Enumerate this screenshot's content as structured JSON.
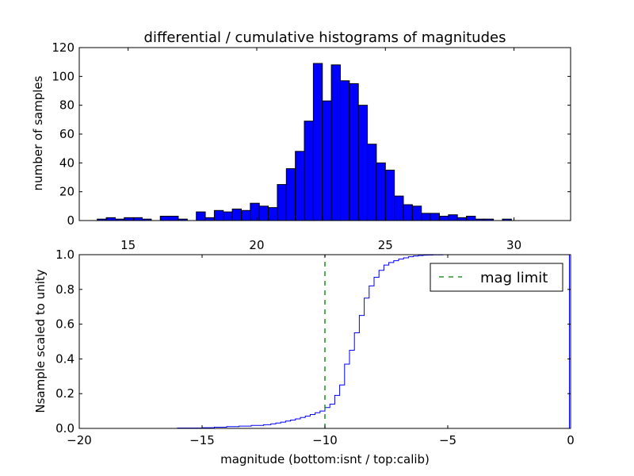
{
  "chart_data": [
    {
      "type": "bar",
      "title": "differential / cumulative histograms of magnitudes",
      "ylabel": "number of samples",
      "xlabel": "",
      "xlim": [
        13.1,
        32.2
      ],
      "ylim": [
        0,
        120
      ],
      "xticks": [
        15,
        20,
        25,
        30
      ],
      "yticks": [
        0,
        20,
        40,
        60,
        80,
        100,
        120
      ],
      "xtick_labels": [
        "15",
        "20",
        "25",
        "30"
      ],
      "ytick_labels": [
        "0",
        "20",
        "40",
        "60",
        "80",
        "100",
        "120"
      ],
      "bin_width": 0.35,
      "x_bin_starts": [
        13.8,
        14.15,
        14.5,
        14.85,
        15.2,
        15.55,
        16.25,
        16.6,
        16.95,
        17.65,
        18.0,
        18.35,
        18.7,
        19.05,
        19.4,
        19.75,
        20.1,
        20.45,
        20.8,
        21.15,
        21.5,
        21.85,
        22.2,
        22.55,
        22.9,
        23.25,
        23.6,
        23.95,
        24.3,
        24.65,
        25.0,
        25.35,
        25.7,
        26.05,
        26.4,
        26.75,
        27.1,
        27.45,
        27.8,
        28.15,
        28.5,
        28.85,
        29.55
      ],
      "values": [
        1,
        2,
        1,
        2,
        2,
        1,
        3,
        3,
        1,
        6,
        2,
        7,
        6,
        8,
        7,
        12,
        10,
        9,
        25,
        36,
        48,
        69,
        109,
        83,
        108,
        97,
        95,
        80,
        53,
        40,
        35,
        17,
        11,
        10,
        5,
        5,
        3,
        4,
        2,
        3,
        1,
        1,
        1
      ],
      "bar_color": "#0000ff",
      "grid": false
    },
    {
      "type": "line",
      "drawstyle": "steps",
      "xlabel": "magnitude (bottom:isnt / top:calib)",
      "ylabel": "Nsample scaled to unity",
      "xlim": [
        -20,
        0
      ],
      "ylim": [
        0,
        1
      ],
      "xticks": [
        -20,
        -15,
        -10,
        -5,
        0
      ],
      "yticks": [
        0,
        0.2,
        0.4,
        0.6,
        0.8,
        1.0
      ],
      "xtick_labels": [
        "−20",
        "−15",
        "−10",
        "−5",
        "0"
      ],
      "ytick_labels": [
        "0.0",
        "0.2",
        "0.4",
        "0.6",
        "0.8",
        "1.0"
      ],
      "series": [
        {
          "color": "#0000ff",
          "x": [
            -20.0,
            -16.0,
            -15.0,
            -14.5,
            -14.0,
            -13.5,
            -13.0,
            -12.5,
            -12.2,
            -12.0,
            -11.8,
            -11.6,
            -11.4,
            -11.2,
            -11.0,
            -10.8,
            -10.6,
            -10.4,
            -10.2,
            -10.0,
            -9.8,
            -9.6,
            -9.4,
            -9.2,
            -9.0,
            -8.8,
            -8.6,
            -8.4,
            -8.2,
            -8.0,
            -7.8,
            -7.6,
            -7.4,
            -7.2,
            -7.0,
            -6.8,
            -6.6,
            -6.4,
            -6.2,
            -6.0,
            -5.8,
            -5.6,
            -5.4,
            -5.2,
            -5.0,
            -0.05
          ],
          "y": [
            0.0,
            0.002,
            0.004,
            0.007,
            0.01,
            0.013,
            0.017,
            0.021,
            0.026,
            0.031,
            0.036,
            0.042,
            0.048,
            0.055,
            0.063,
            0.071,
            0.08,
            0.09,
            0.1,
            0.12,
            0.14,
            0.19,
            0.25,
            0.37,
            0.45,
            0.55,
            0.65,
            0.75,
            0.82,
            0.87,
            0.91,
            0.94,
            0.955,
            0.965,
            0.975,
            0.982,
            0.988,
            0.992,
            0.995,
            0.997,
            0.998,
            0.999,
            0.999,
            1.0,
            1.0,
            1.0
          ]
        },
        {
          "name": "mag limit",
          "color": "#008000",
          "linestyle": "dashed",
          "x": [
            -10,
            -10
          ],
          "y": [
            0,
            1
          ]
        }
      ],
      "legend": {
        "entries": [
          "mag limit"
        ],
        "placement": "top-right"
      },
      "grid": false
    }
  ]
}
